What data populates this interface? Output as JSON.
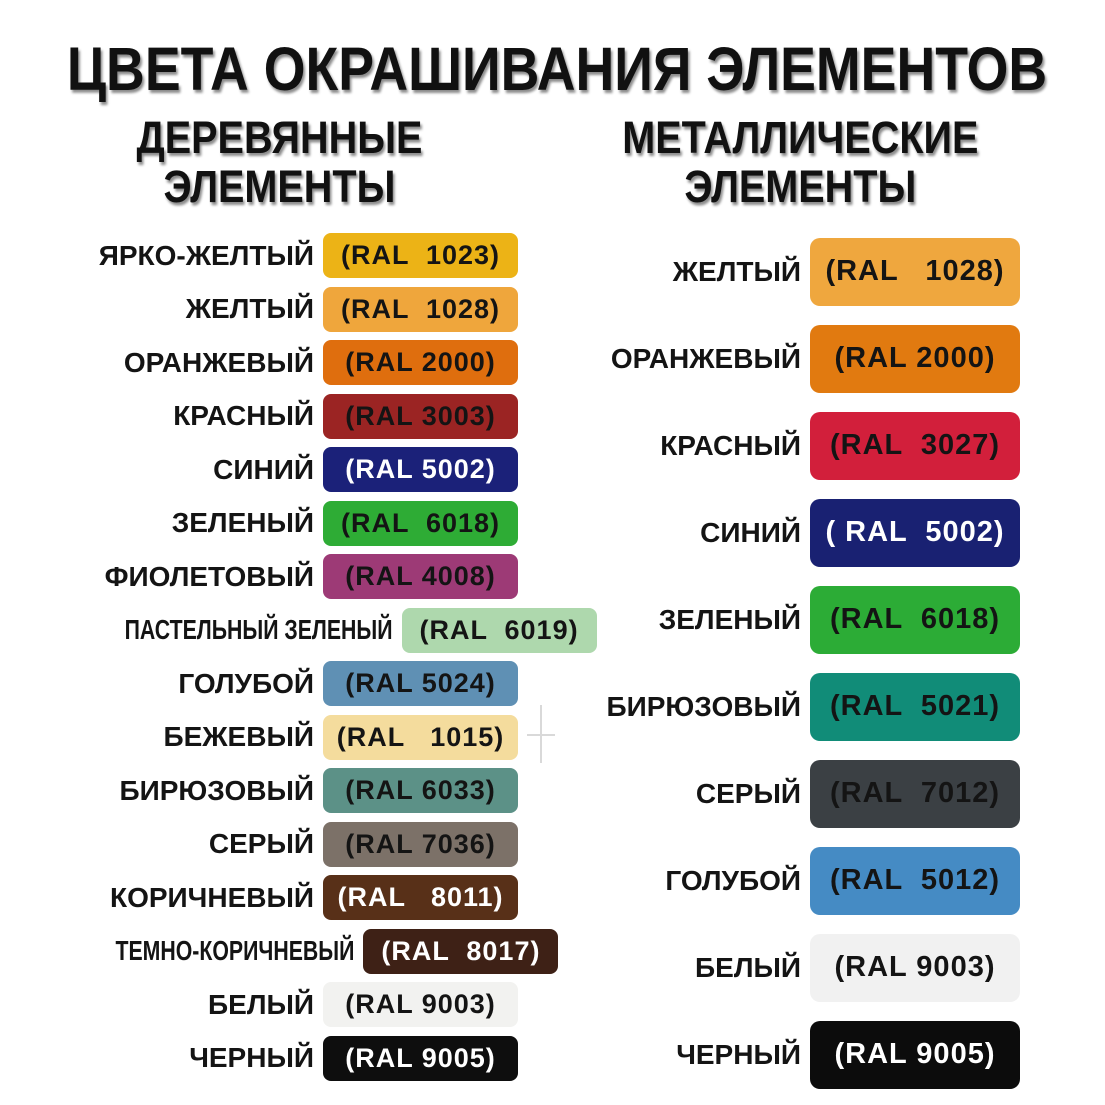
{
  "page": {
    "title": "ЦВЕТА ОКРАШИВАНИЯ ЭЛЕМЕНТОВ",
    "background": "#ffffff",
    "text_color": "#111111"
  },
  "columns": [
    {
      "id": "wooden",
      "subtitle_line1": "ДЕРЕВЯННЫЕ",
      "subtitle_line2": "ЭЛЕМЕНТЫ",
      "rows": [
        {
          "label": "ЯРКО-ЖЕЛТЫЙ",
          "ral": "(RAL  1023)",
          "color": "#ECB316",
          "text_color": "#141414",
          "condensed": false
        },
        {
          "label": "ЖЕЛТЫЙ",
          "ral": "(RAL  1028)",
          "color": "#EFA63C",
          "text_color": "#141414",
          "condensed": false
        },
        {
          "label": "ОРАНЖЕВЫЙ",
          "ral": "(RAL 2000)",
          "color": "#DF6E0E",
          "text_color": "#141414",
          "condensed": false
        },
        {
          "label": "КРАСНЫЙ",
          "ral": "(RAL 3003)",
          "color": "#9B2423",
          "text_color": "#141414",
          "condensed": false
        },
        {
          "label": "СИНИЙ",
          "ral": "(RAL 5002)",
          "color": "#1B2179",
          "text_color": "#ffffff",
          "condensed": false
        },
        {
          "label": "ЗЕЛЕНЫЙ",
          "ral": "(RAL  6018)",
          "color": "#2EAC35",
          "text_color": "#141414",
          "condensed": false
        },
        {
          "label": "ФИОЛЕТОВЫЙ",
          "ral": "(RAL 4008)",
          "color": "#9D3A76",
          "text_color": "#141414",
          "condensed": false
        },
        {
          "label": "ПАСТЕЛЬНЫЙ ЗЕЛЕНЫЙ",
          "ral": "(RAL  6019)",
          "color": "#AED8AD",
          "text_color": "#141414",
          "condensed": true
        },
        {
          "label": "ГОЛУБОЙ",
          "ral": "(RAL 5024)",
          "color": "#5F90B4",
          "text_color": "#141414",
          "condensed": false
        },
        {
          "label": "БЕЖЕВЫЙ",
          "ral": "(RAL   1015)",
          "color": "#F4DC9D",
          "text_color": "#141414",
          "condensed": false
        },
        {
          "label": "БИРЮЗОВЫЙ",
          "ral": "(RAL 6033)",
          "color": "#5C9187",
          "text_color": "#141414",
          "condensed": false
        },
        {
          "label": "СЕРЫЙ",
          "ral": "(RAL 7036)",
          "color": "#7C7168",
          "text_color": "#141414",
          "condensed": false
        },
        {
          "label": "КОРИЧНЕВЫЙ",
          "ral": "(RAL   8011)",
          "color": "#583018",
          "text_color": "#ffffff",
          "condensed": false
        },
        {
          "label": "ТЕМНО-КОРИЧНЕВЫЙ",
          "ral": "(RAL  8017)",
          "color": "#3E2116",
          "text_color": "#ffffff",
          "condensed": true
        },
        {
          "label": "БЕЛЫЙ",
          "ral": "(RAL 9003)",
          "color": "#F2F2F0",
          "text_color": "#141414",
          "condensed": false
        },
        {
          "label": "ЧЕРНЫЙ",
          "ral": "(RAL 9005)",
          "color": "#0E0E0E",
          "text_color": "#ffffff",
          "condensed": false
        }
      ]
    },
    {
      "id": "metal",
      "subtitle_line1": "МЕТАЛЛИЧЕСКИЕ",
      "subtitle_line2": "ЭЛЕМЕНТЫ",
      "rows": [
        {
          "label": "ЖЕЛТЫЙ",
          "ral": "(RAL   1028)",
          "color": "#EFA73E",
          "text_color": "#141414",
          "condensed": false
        },
        {
          "label": "ОРАНЖЕВЫЙ",
          "ral": "(RAL 2000)",
          "color": "#E17A10",
          "text_color": "#141414",
          "condensed": false
        },
        {
          "label": "КРАСНЫЙ",
          "ral": "(RAL  3027)",
          "color": "#D21F3B",
          "text_color": "#141414",
          "condensed": false
        },
        {
          "label": "СИНИЙ",
          "ral": "( RAL  5002)",
          "color": "#192172",
          "text_color": "#ffffff",
          "condensed": false
        },
        {
          "label": "ЗЕЛЕНЫЙ",
          "ral": "(RAL  6018)",
          "color": "#2CAC36",
          "text_color": "#141414",
          "condensed": false
        },
        {
          "label": "БИРЮЗОВЫЙ",
          "ral": "(RAL  5021)",
          "color": "#118C78",
          "text_color": "#141414",
          "condensed": false
        },
        {
          "label": "СЕРЫЙ",
          "ral": "(RAL  7012)",
          "color": "#3B4044",
          "text_color": "#141414",
          "condensed": false
        },
        {
          "label": "ГОЛУБОЙ",
          "ral": "(RAL  5012)",
          "color": "#458BC4",
          "text_color": "#141414",
          "condensed": false
        },
        {
          "label": "БЕЛЫЙ",
          "ral": "(RAL 9003)",
          "color": "#F1F1F1",
          "text_color": "#141414",
          "condensed": false
        },
        {
          "label": "ЧЕРНЫЙ",
          "ral": "(RAL 9005)",
          "color": "#0C0C0C",
          "text_color": "#ffffff",
          "condensed": false
        }
      ]
    }
  ]
}
